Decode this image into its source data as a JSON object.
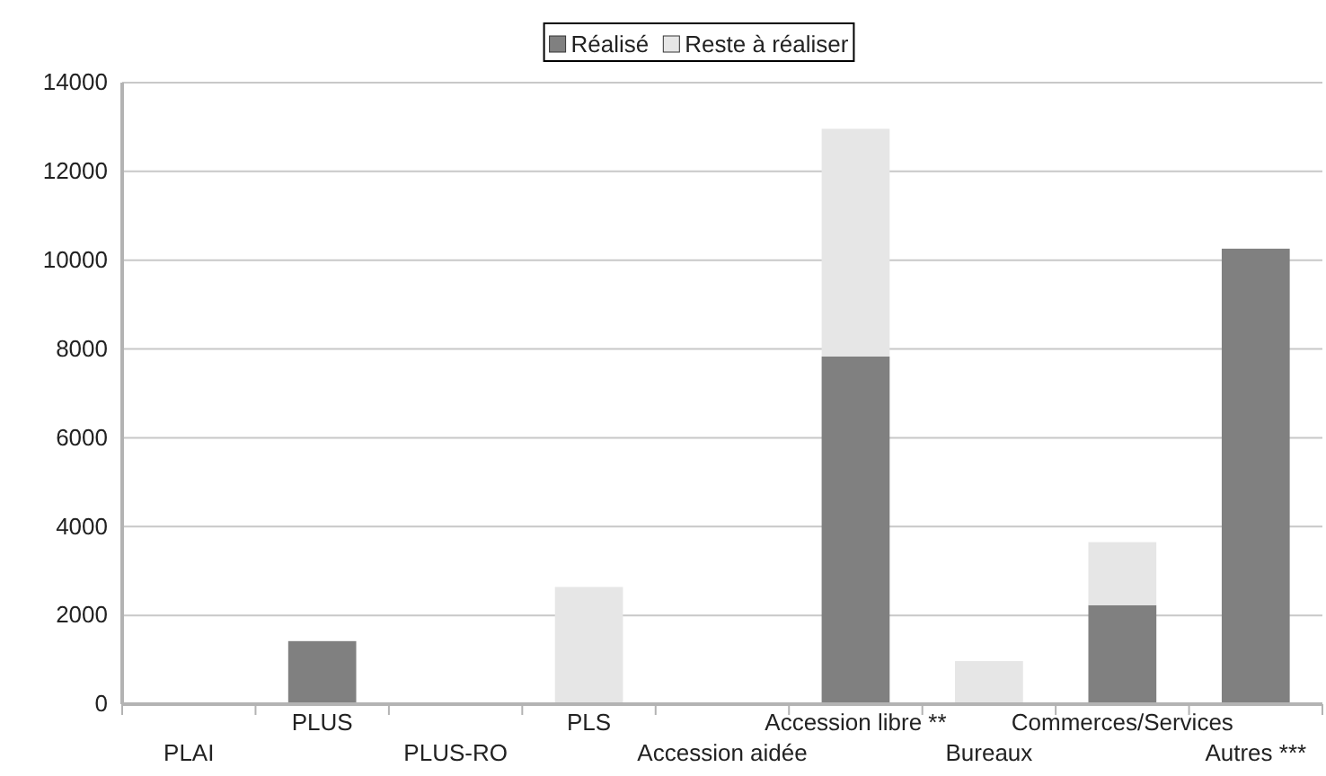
{
  "chart_data": {
    "type": "bar",
    "stacked": true,
    "categories": [
      "PLAI",
      "PLUS",
      "PLUS-RO",
      "PLS",
      "Accession aidée",
      "Accession libre **",
      "Bureaux",
      "Commerces/Services",
      "Autres ***"
    ],
    "series": [
      {
        "name": "Réalisé",
        "color": "#808080",
        "values": [
          0,
          1420,
          0,
          0,
          0,
          7830,
          0,
          2230,
          10260
        ]
      },
      {
        "name": "Reste à réaliser",
        "color": "#e6e6e6",
        "values": [
          0,
          0,
          0,
          2640,
          0,
          5130,
          970,
          1420,
          0
        ]
      }
    ],
    "ylim": [
      0,
      14000
    ],
    "yticks": [
      0,
      2000,
      4000,
      6000,
      8000,
      10000,
      12000,
      14000
    ],
    "grid": "y",
    "legend": "top"
  }
}
